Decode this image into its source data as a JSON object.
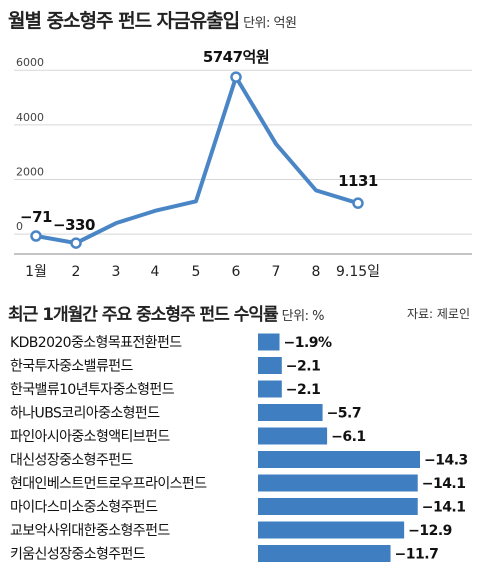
{
  "header": {
    "title": "월별 중소형주 펀드 자금유출입",
    "unit": "단위: 억원"
  },
  "section2": {
    "title": "최근 1개월간 주요 중소형주 펀드 수익률",
    "unit": "단위: %",
    "source": "자료: 제로인"
  },
  "colors": {
    "line": "#4a86c5",
    "bar": "#3f7fc1",
    "grid": "#d7d7d7"
  },
  "chart_data": [
    {
      "type": "line",
      "x": [
        "1월",
        "2",
        "3",
        "4",
        "5",
        "6",
        "7",
        "8",
        "9.15일"
      ],
      "values": [
        -71,
        -330,
        400,
        850,
        1200,
        5747,
        3300,
        1600,
        1131
      ],
      "point_labels": [
        {
          "index": 0,
          "text": "−71"
        },
        {
          "index": 1,
          "text": "−330"
        },
        {
          "index": 5,
          "text": "5747억원"
        },
        {
          "index": 8,
          "text": "1131"
        }
      ],
      "yticks": [
        0,
        2000,
        4000,
        6000
      ],
      "ylim": [
        -400,
        6300
      ],
      "grid": true
    },
    {
      "type": "bar",
      "orientation": "horizontal",
      "categories": [
        "KDB2020중소형목표전환펀드",
        "한국투자중소밸류펀드",
        "한국밸류10년투자중소형펀드",
        "하나UBS코리아중소형펀드",
        "파인아시아중소형액티브펀드",
        "대신성장중소형주펀드",
        "현대인베스트먼트로우프라이스펀드",
        "마이다스미소중소형주펀드",
        "교보악사위대한중소형주펀드",
        "키움신성장중소형주펀드"
      ],
      "values": [
        -1.9,
        -2.1,
        -2.1,
        -5.7,
        -6.1,
        -14.3,
        -14.1,
        -14.1,
        -12.9,
        -11.7
      ],
      "value_labels": [
        "−1.9%",
        "−2.1",
        "−2.1",
        "−5.7",
        "−6.1",
        "−14.3",
        "−14.1",
        "−14.1",
        "−12.9",
        "−11.7"
      ]
    }
  ]
}
